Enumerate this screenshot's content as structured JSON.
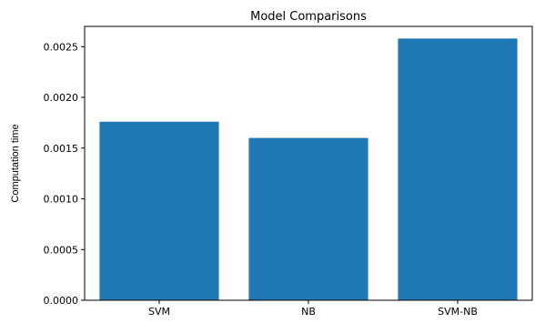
{
  "chart_data": {
    "type": "bar",
    "title": "Model Comparisons",
    "xlabel": "",
    "ylabel": "Computation time",
    "categories": [
      "SVM",
      "NB",
      "SVM-NB"
    ],
    "values": [
      0.00176,
      0.0016,
      0.00258
    ],
    "ylim": [
      0,
      0.0027
    ],
    "yticks": [
      "0.0000",
      "0.0005",
      "0.0010",
      "0.0015",
      "0.0020",
      "0.0025"
    ],
    "ytick_values": [
      0,
      0.0005,
      0.001,
      0.0015,
      0.002,
      0.0025
    ],
    "bar_color": "#1f77b4",
    "grid": false,
    "legend": "none"
  }
}
